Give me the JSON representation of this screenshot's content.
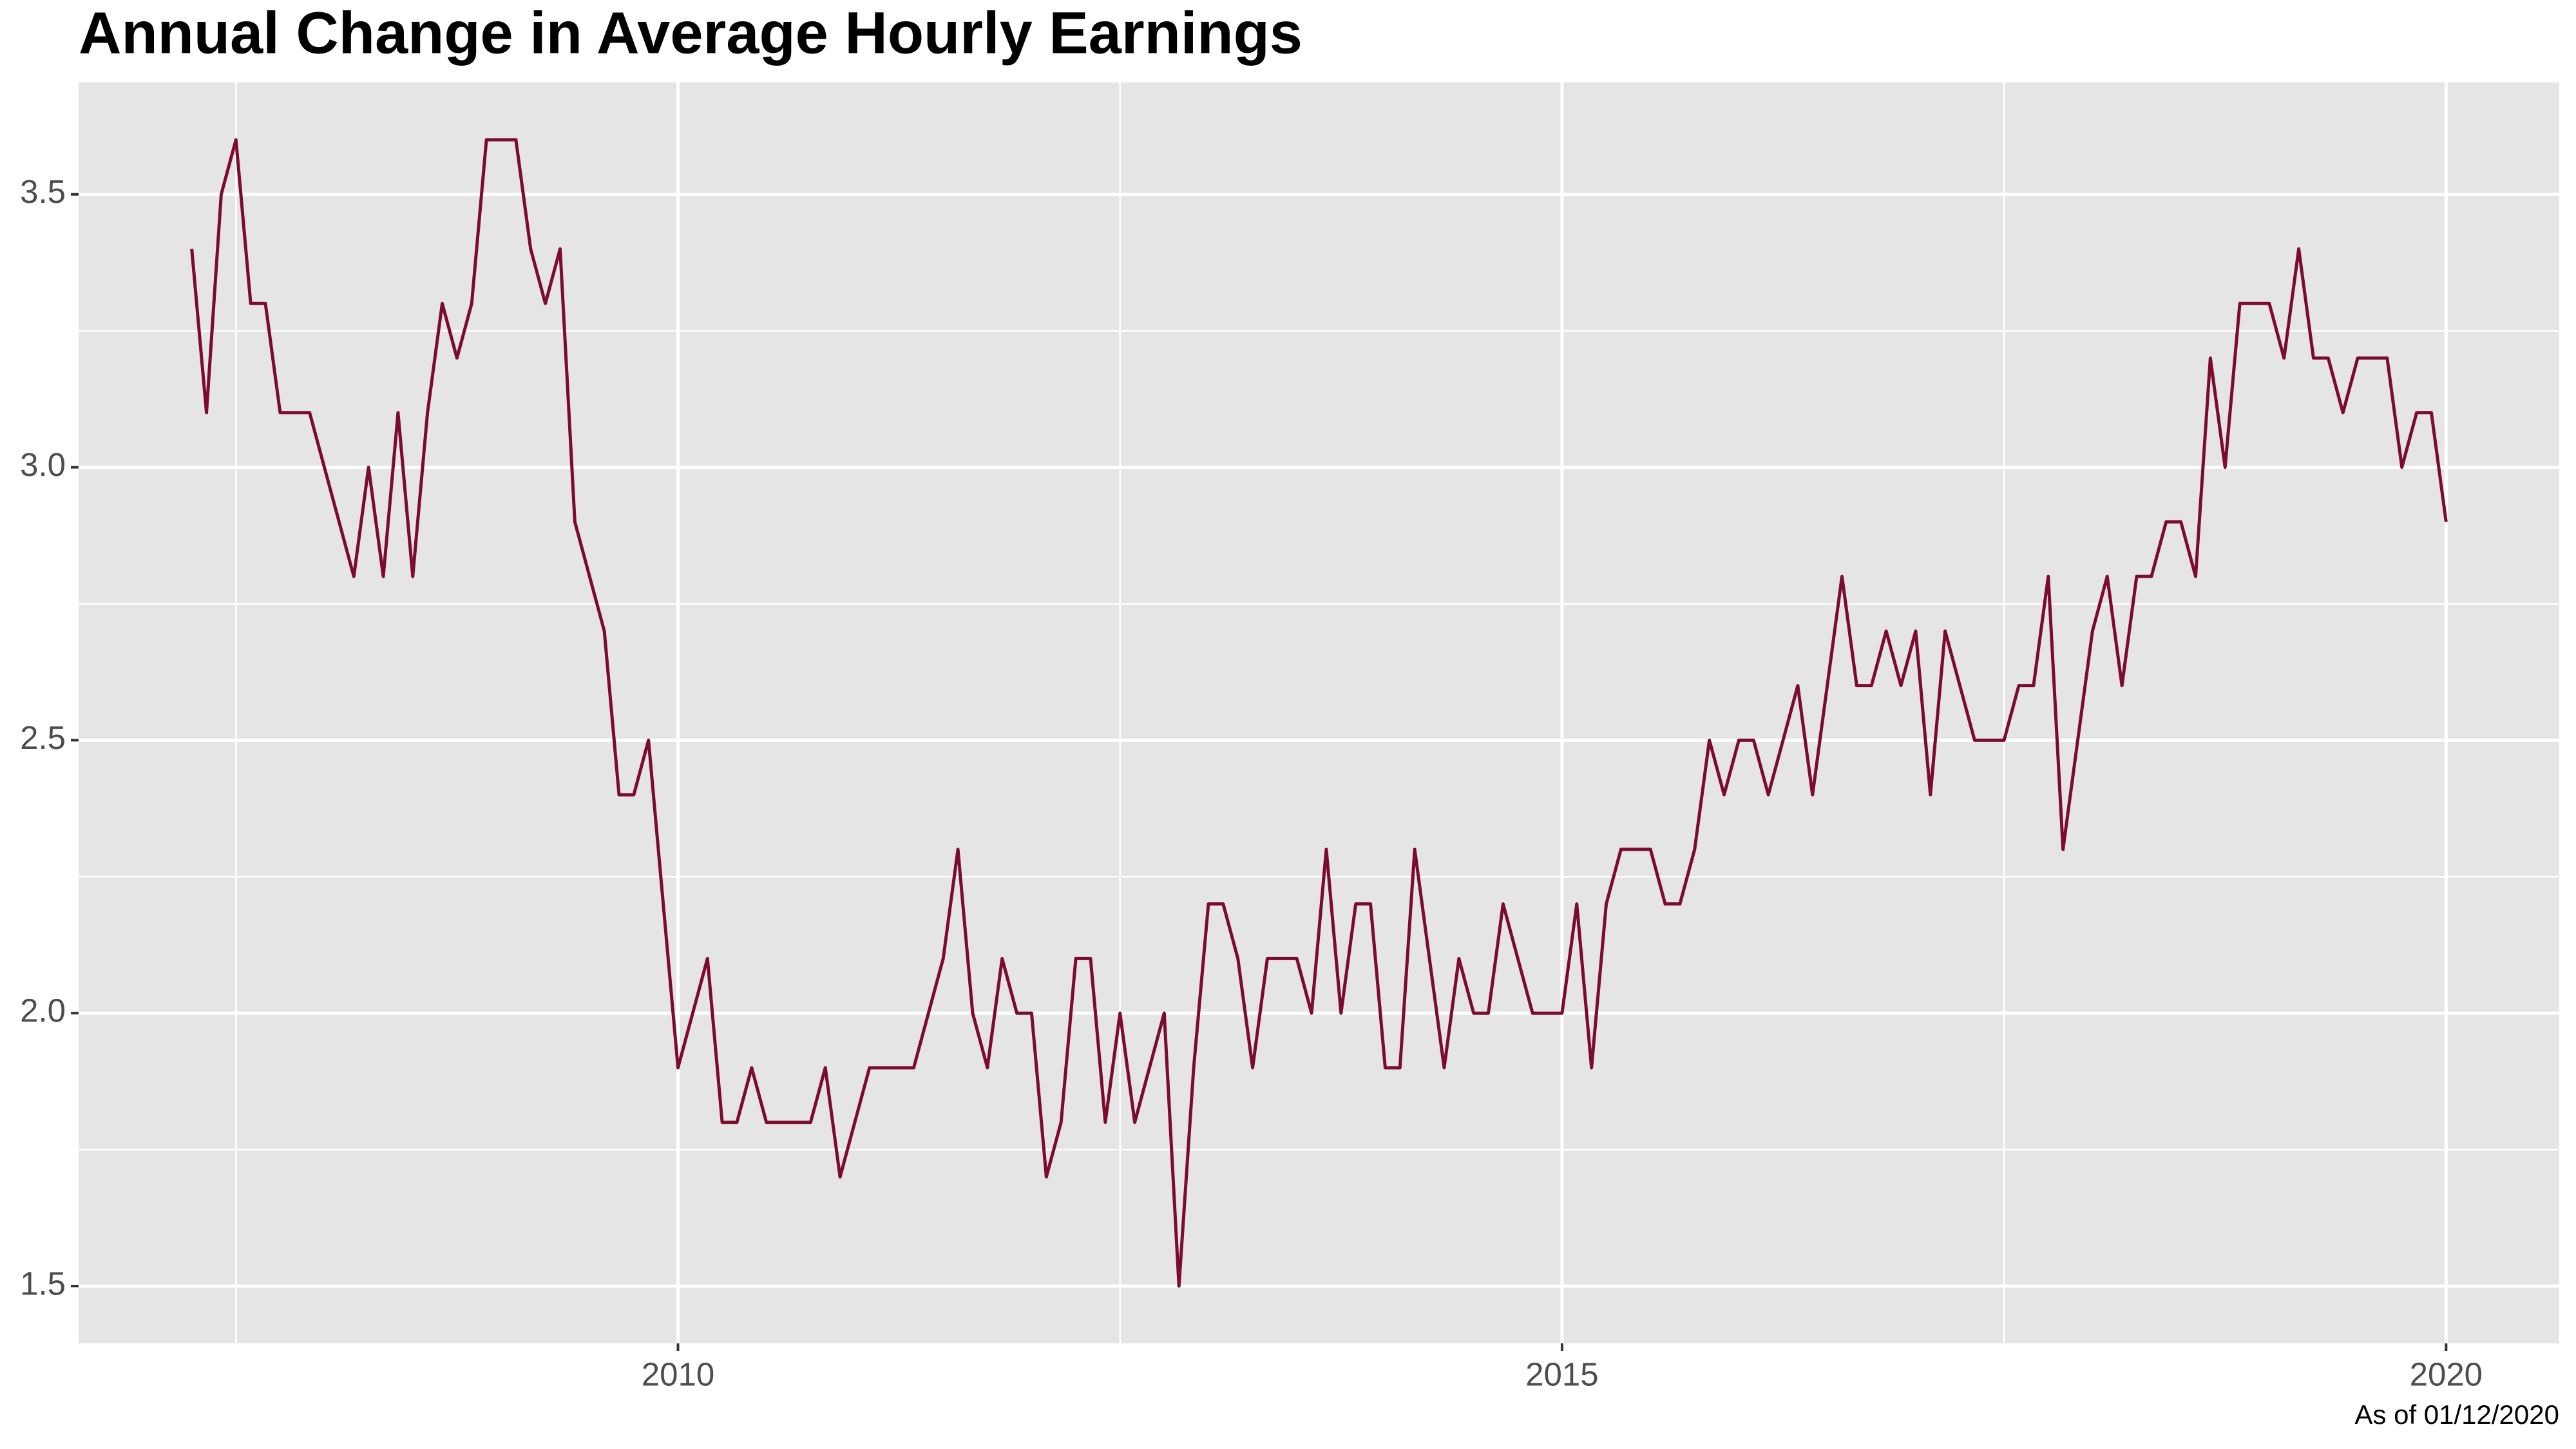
{
  "chart_data": {
    "type": "line",
    "title": "Annual Change in Average Hourly Earnings",
    "caption": "As of 01/12/2020",
    "x": [
      "2007-04",
      "2007-05",
      "2007-06",
      "2007-07",
      "2007-08",
      "2007-09",
      "2007-10",
      "2007-11",
      "2007-12",
      "2008-01",
      "2008-02",
      "2008-03",
      "2008-04",
      "2008-05",
      "2008-06",
      "2008-07",
      "2008-08",
      "2008-09",
      "2008-10",
      "2008-11",
      "2008-12",
      "2009-01",
      "2009-02",
      "2009-03",
      "2009-04",
      "2009-05",
      "2009-06",
      "2009-07",
      "2009-08",
      "2009-09",
      "2009-10",
      "2009-11",
      "2009-12",
      "2010-01",
      "2010-02",
      "2010-03",
      "2010-04",
      "2010-05",
      "2010-06",
      "2010-07",
      "2010-08",
      "2010-09",
      "2010-10",
      "2010-11",
      "2010-12",
      "2011-01",
      "2011-02",
      "2011-03",
      "2011-04",
      "2011-05",
      "2011-06",
      "2011-07",
      "2011-08",
      "2011-09",
      "2011-10",
      "2011-11",
      "2011-12",
      "2012-01",
      "2012-02",
      "2012-03",
      "2012-04",
      "2012-05",
      "2012-06",
      "2012-07",
      "2012-08",
      "2012-09",
      "2012-10",
      "2012-11",
      "2012-12",
      "2013-01",
      "2013-02",
      "2013-03",
      "2013-04",
      "2013-05",
      "2013-06",
      "2013-07",
      "2013-08",
      "2013-09",
      "2013-10",
      "2013-11",
      "2013-12",
      "2014-01",
      "2014-02",
      "2014-03",
      "2014-04",
      "2014-05",
      "2014-06",
      "2014-07",
      "2014-08",
      "2014-09",
      "2014-10",
      "2014-11",
      "2014-12",
      "2015-01",
      "2015-02",
      "2015-03",
      "2015-04",
      "2015-05",
      "2015-06",
      "2015-07",
      "2015-08",
      "2015-09",
      "2015-10",
      "2015-11",
      "2015-12",
      "2016-01",
      "2016-02",
      "2016-03",
      "2016-04",
      "2016-05",
      "2016-06",
      "2016-07",
      "2016-08",
      "2016-09",
      "2016-10",
      "2016-11",
      "2016-12",
      "2017-01",
      "2017-02",
      "2017-03",
      "2017-04",
      "2017-05",
      "2017-06",
      "2017-07",
      "2017-08",
      "2017-09",
      "2017-10",
      "2017-11",
      "2017-12",
      "2018-01",
      "2018-02",
      "2018-03",
      "2018-04",
      "2018-05",
      "2018-06",
      "2018-07",
      "2018-08",
      "2018-09",
      "2018-10",
      "2018-11",
      "2018-12",
      "2019-01",
      "2019-02",
      "2019-03",
      "2019-04",
      "2019-05",
      "2019-06",
      "2019-07",
      "2019-08",
      "2019-09",
      "2019-10",
      "2019-11",
      "2019-12",
      "2020-01"
    ],
    "series": [
      {
        "color": "#7b0c2e",
        "values": [
          3.4,
          3.1,
          3.5,
          3.6,
          3.3,
          3.3,
          3.1,
          3.1,
          3.1,
          3.0,
          2.9,
          2.8,
          3.0,
          2.8,
          3.1,
          2.8,
          3.1,
          3.3,
          3.2,
          3.3,
          3.6,
          3.6,
          3.6,
          3.4,
          3.3,
          3.4,
          2.9,
          2.8,
          2.7,
          2.4,
          2.4,
          2.5,
          2.2,
          1.9,
          2.0,
          2.1,
          1.8,
          1.8,
          1.9,
          1.8,
          1.8,
          1.8,
          1.8,
          1.9,
          1.7,
          1.8,
          1.9,
          1.9,
          1.9,
          1.9,
          2.0,
          2.1,
          2.3,
          2.0,
          1.9,
          2.1,
          2.0,
          2.0,
          1.7,
          1.8,
          2.1,
          2.1,
          1.8,
          2.0,
          1.8,
          1.9,
          2.0,
          1.5,
          1.9,
          2.2,
          2.2,
          2.1,
          1.9,
          2.1,
          2.1,
          2.1,
          2.0,
          2.3,
          2.0,
          2.2,
          2.2,
          1.9,
          1.9,
          2.3,
          2.1,
          1.9,
          2.1,
          2.0,
          2.0,
          2.2,
          2.1,
          2.0,
          2.0,
          2.0,
          2.2,
          1.9,
          2.2,
          2.3,
          2.3,
          2.3,
          2.2,
          2.2,
          2.3,
          2.5,
          2.4,
          2.5,
          2.5,
          2.4,
          2.5,
          2.6,
          2.4,
          2.6,
          2.8,
          2.6,
          2.6,
          2.7,
          2.6,
          2.7,
          2.4,
          2.7,
          2.6,
          2.5,
          2.5,
          2.5,
          2.6,
          2.6,
          2.8,
          2.3,
          2.5,
          2.7,
          2.8,
          2.6,
          2.8,
          2.8,
          2.9,
          2.9,
          2.8,
          3.2,
          3.0,
          3.3,
          3.3,
          3.3,
          3.2,
          3.4,
          3.2,
          3.2,
          3.1,
          3.2,
          3.2,
          3.2,
          3.0,
          3.1,
          3.1,
          2.9
        ]
      }
    ],
    "xlim": [
      2006.61,
      2020.64
    ],
    "xticks": [
      2010,
      2015,
      2020
    ],
    "xminorticks": [
      2007.5,
      2012.5,
      2017.5
    ],
    "ylim": [
      1.395,
      3.705
    ],
    "yticks": [
      1.5,
      {
        "value": 2,
        "label": "2.0"
      },
      2.5,
      {
        "value": 3,
        "label": "3.0"
      },
      3.5
    ],
    "yminorticks": [
      1.75,
      2.25,
      2.75,
      3.25
    ],
    "grid": true
  }
}
